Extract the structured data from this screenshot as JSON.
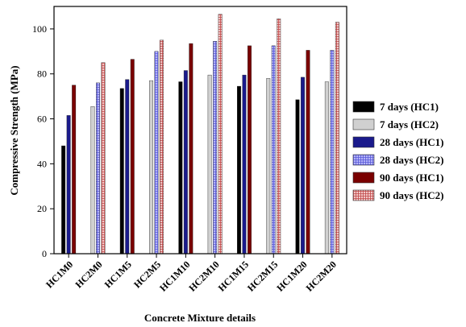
{
  "chart_data": {
    "type": "bar",
    "title": "",
    "xlabel": "Concrete Mixture details",
    "ylabel": "Compressive Strength (MPa)",
    "ylim": [
      0,
      110
    ],
    "yticks": [
      0,
      20,
      40,
      60,
      80,
      100
    ],
    "grid": false,
    "legend_position": "right",
    "categories": [
      "HC1M0",
      "HC2M0",
      "HC1M5",
      "HC2M5",
      "HC1M10",
      "HC2M10",
      "HC1M15",
      "HC2M15",
      "HC1M20",
      "HC2M20"
    ],
    "series": [
      {
        "name": "7 days (HC1)",
        "fill": "#000000",
        "pattern": "solid",
        "values": [
          48,
          null,
          73.5,
          null,
          76.5,
          null,
          74.5,
          null,
          68.5,
          null
        ]
      },
      {
        "name": "7 days (HC2)",
        "fill": "#d0d0d0",
        "pattern": "solid",
        "values": [
          null,
          65.5,
          null,
          77,
          null,
          79.5,
          null,
          78,
          null,
          76.5
        ]
      },
      {
        "name": "28 days (HC1)",
        "fill": "#1a1a8c",
        "pattern": "solid",
        "values": [
          61.5,
          null,
          77.5,
          null,
          81.5,
          null,
          79.5,
          null,
          78.5,
          null
        ]
      },
      {
        "name": "28 days (HC2)",
        "fill": "#9e9ef2",
        "pattern": "grid",
        "values": [
          null,
          76,
          null,
          90,
          null,
          94.5,
          null,
          92.5,
          null,
          90.5
        ]
      },
      {
        "name": "90 days (HC1)",
        "fill": "#7a0000",
        "pattern": "solid",
        "values": [
          75,
          null,
          86.5,
          null,
          93.5,
          null,
          92.5,
          null,
          90.5,
          null
        ]
      },
      {
        "name": "90 days (HC2)",
        "fill": "#e8a0a0",
        "pattern": "grid",
        "values": [
          null,
          85,
          null,
          95,
          null,
          106.5,
          null,
          104.5,
          null,
          103
        ]
      }
    ]
  }
}
